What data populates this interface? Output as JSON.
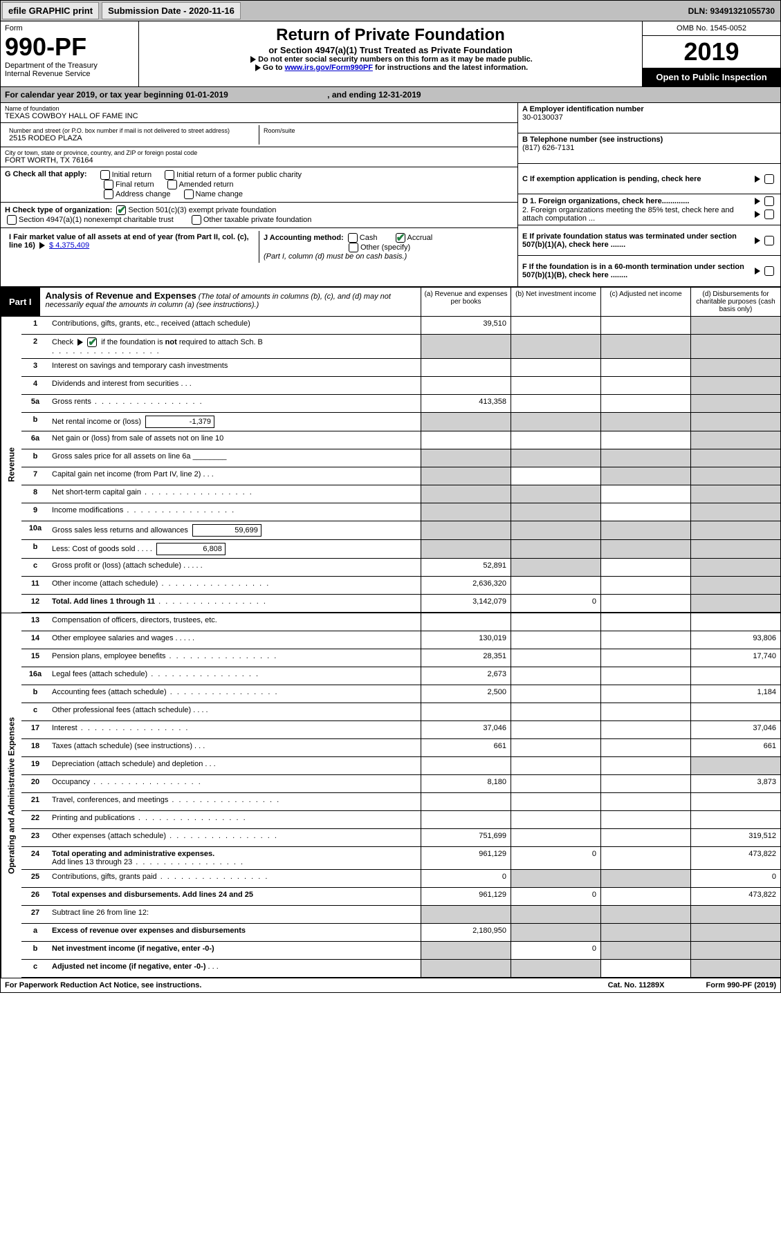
{
  "toolbar": {
    "efile": "efile GRAPHIC print",
    "sub_label": "Submission Date - 2020-11-16",
    "dln": "DLN: 93491321055730"
  },
  "header": {
    "form_lbl": "Form",
    "form_num": "990-PF",
    "dept": "Department of the Treasury",
    "irs": "Internal Revenue Service",
    "title": "Return of Private Foundation",
    "subtitle": "or Section 4947(a)(1) Trust Treated as Private Foundation",
    "instr1": "Do not enter social security numbers on this form as it may be made public.",
    "instr2a": "Go to ",
    "instr2_link": "www.irs.gov/Form990PF",
    "instr2b": " for instructions and the latest information.",
    "omb": "OMB No. 1545-0052",
    "year": "2019",
    "open": "Open to Public Inspection"
  },
  "cal": {
    "text1": "For calendar year 2019, or tax year beginning 01-01-2019",
    "text2": ", and ending 12-31-2019"
  },
  "entity": {
    "name_lbl": "Name of foundation",
    "name": "TEXAS COWBOY HALL OF FAME INC",
    "addr_lbl": "Number and street (or P.O. box number if mail is not delivered to street address)",
    "room_lbl": "Room/suite",
    "addr": "2515 RODEO PLAZA",
    "city_lbl": "City or town, state or province, country, and ZIP or foreign postal code",
    "city": "FORT WORTH, TX  76164",
    "ein_lbl": "A Employer identification number",
    "ein": "30-0130037",
    "tel_lbl": "B Telephone number (see instructions)",
    "tel": "(817) 626-7131",
    "C": "C If exemption application is pending, check here",
    "D1": "D 1. Foreign organizations, check here.............",
    "D2": "2. Foreign organizations meeting the 85% test, check here and attach computation ...",
    "E": "E  If private foundation status was terminated under section 507(b)(1)(A), check here .......",
    "F": "F  If the foundation is in a 60-month termination under section 507(b)(1)(B), check here ........"
  },
  "G": {
    "lbl": "G Check all that apply:",
    "o1": "Initial return",
    "o2": "Initial return of a former public charity",
    "o3": "Final return",
    "o4": "Amended return",
    "o5": "Address change",
    "o6": "Name change"
  },
  "H": {
    "lbl": "H Check type of organization:",
    "o1": "Section 501(c)(3) exempt private foundation",
    "o2": "Section 4947(a)(1) nonexempt charitable trust",
    "o3": "Other taxable private foundation"
  },
  "I": {
    "lbl": "I Fair market value of all assets at end of year (from Part II, col. (c), line 16)",
    "val": "$  4,375,409"
  },
  "J": {
    "lbl": "J Accounting method:",
    "o1": "Cash",
    "o2": "Accrual",
    "o3": "Other (specify)",
    "note": "(Part I, column (d) must be on cash basis.)"
  },
  "part1": {
    "tag": "Part I",
    "title": "Analysis of Revenue and Expenses",
    "sub": " (The total of amounts in columns (b), (c), and (d) may not necessarily equal the amounts in column (a) (see instructions).)",
    "cols": {
      "a": "(a)   Revenue and expenses per books",
      "b": "(b)  Net investment income",
      "c": "(c)  Adjusted net income",
      "d": "(d)  Disbursements for charitable purposes (cash basis only)"
    }
  },
  "sides": {
    "rev": "Revenue",
    "exp": "Operating and Administrative Expenses"
  },
  "lines": {
    "1": {
      "d": "Contributions, gifts, grants, etc., received (attach schedule)",
      "a": "39,510"
    },
    "2": {
      "d1": "Check",
      "d2": "if the foundation is ",
      "d3": "not",
      "d4": " required to attach Sch. B"
    },
    "3": {
      "d": "Interest on savings and temporary cash investments"
    },
    "4": {
      "d": "Dividends and interest from securities"
    },
    "5a": {
      "d": "Gross rents",
      "a": "413,358"
    },
    "5b": {
      "d": "Net rental income or (loss)",
      "v": "-1,379"
    },
    "6a": {
      "d": "Net gain or (loss) from sale of assets not on line 10"
    },
    "6b": {
      "d": "Gross sales price for all assets on line 6a"
    },
    "7": {
      "d": "Capital gain net income (from Part IV, line 2)"
    },
    "8": {
      "d": "Net short-term capital gain"
    },
    "9": {
      "d": "Income modifications"
    },
    "10a": {
      "d": "Gross sales less returns and allowances",
      "v": "59,699"
    },
    "10b": {
      "d": "Less: Cost of goods sold",
      "v": "6,808"
    },
    "10c": {
      "d": "Gross profit or (loss) (attach schedule)",
      "a": "52,891"
    },
    "11": {
      "d": "Other income (attach schedule)",
      "a": "2,636,320"
    },
    "12": {
      "d": "Total. Add lines 1 through 11",
      "a": "3,142,079",
      "b": "0"
    },
    "13": {
      "d": "Compensation of officers, directors, trustees, etc."
    },
    "14": {
      "d": "Other employee salaries and wages",
      "a": "130,019",
      "dd": "93,806"
    },
    "15": {
      "d": "Pension plans, employee benefits",
      "a": "28,351",
      "dd": "17,740"
    },
    "16a": {
      "d": "Legal fees (attach schedule)",
      "a": "2,673"
    },
    "16b": {
      "d": "Accounting fees (attach schedule)",
      "a": "2,500",
      "dd": "1,184"
    },
    "16c": {
      "d": "Other professional fees (attach schedule)"
    },
    "17": {
      "d": "Interest",
      "a": "37,046",
      "dd": "37,046"
    },
    "18": {
      "d": "Taxes (attach schedule) (see instructions)",
      "a": "661",
      "dd": "661"
    },
    "19": {
      "d": "Depreciation (attach schedule) and depletion"
    },
    "20": {
      "d": "Occupancy",
      "a": "8,180",
      "dd": "3,873"
    },
    "21": {
      "d": "Travel, conferences, and meetings"
    },
    "22": {
      "d": "Printing and publications"
    },
    "23": {
      "d": "Other expenses (attach schedule)",
      "a": "751,699",
      "dd": "319,512"
    },
    "24": {
      "d": "Total operating and administrative expenses.",
      "d2": "Add lines 13 through 23",
      "a": "961,129",
      "b": "0",
      "dd": "473,822"
    },
    "25": {
      "d": "Contributions, gifts, grants paid",
      "a": "0",
      "dd": "0"
    },
    "26": {
      "d": "Total expenses and disbursements. Add lines 24 and 25",
      "a": "961,129",
      "b": "0",
      "dd": "473,822"
    },
    "27": {
      "d": "Subtract line 26 from line 12:"
    },
    "27a": {
      "d": "Excess of revenue over expenses and disbursements",
      "a": "2,180,950"
    },
    "27b": {
      "d": "Net investment income (if negative, enter -0-)",
      "b": "0"
    },
    "27c": {
      "d": "Adjusted net income (if negative, enter -0-)"
    }
  },
  "footer": {
    "pra": "For Paperwork Reduction Act Notice, see instructions.",
    "cat": "Cat. No. 11289X",
    "form": "Form 990-PF (2019)"
  }
}
